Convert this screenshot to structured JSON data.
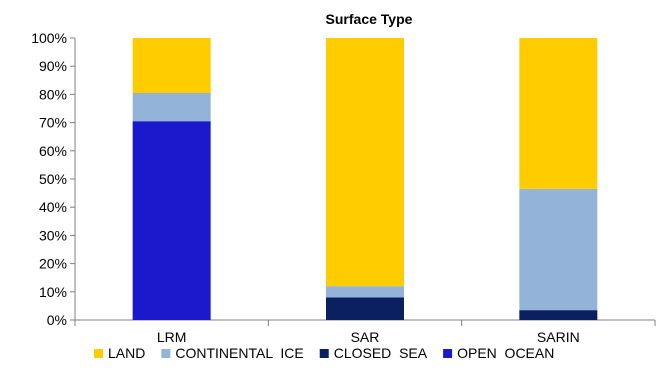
{
  "chart_data": {
    "type": "bar",
    "stacked": true,
    "title": "Surface Type",
    "xlabel": "",
    "ylabel": "",
    "ylim": [
      0,
      100
    ],
    "y_unit": "percent",
    "y_ticks": [
      "0%",
      "10%",
      "20%",
      "30%",
      "40%",
      "50%",
      "60%",
      "70%",
      "80%",
      "90%",
      "100%"
    ],
    "categories": [
      "LRM",
      "SAR",
      "SARIN"
    ],
    "series": [
      {
        "name": "OPEN  OCEAN",
        "color": "#1A1ACC",
        "values": [
          70.5,
          0,
          0
        ]
      },
      {
        "name": "CLOSED  SEA",
        "color": "#0A2060",
        "values": [
          0,
          8,
          3.5
        ]
      },
      {
        "name": "CONTINENTAL  ICE",
        "color": "#93B3D8",
        "values": [
          10,
          4,
          43
        ]
      },
      {
        "name": "LAND",
        "color": "#FFCC00",
        "values": [
          19.5,
          88,
          53.5
        ]
      }
    ],
    "legend": {
      "position": "bottom",
      "order": [
        "LAND",
        "CONTINENTAL  ICE",
        "CLOSED  SEA",
        "OPEN  OCEAN"
      ]
    },
    "grid": false
  }
}
